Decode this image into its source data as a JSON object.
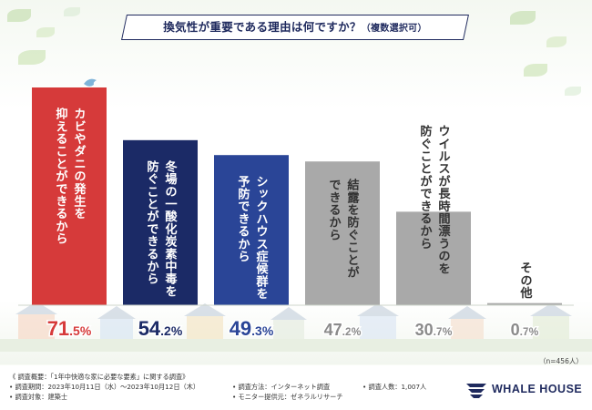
{
  "title": {
    "main": "換気性が重要である理由は何ですか？",
    "sub": "（複数選択可）"
  },
  "chart_data": {
    "type": "bar",
    "title": "換気性が重要である理由は何ですか？（複数選択可）",
    "categories": [
      "カビやダニの発生を抑えることができるから",
      "冬場の一酸化炭素中毒を防ぐことができるから",
      "シックハウス症候群を予防できるから",
      "結露を防ぐことができるから",
      "ウイルスが長時間漂うのを防ぐことができるから",
      "その他"
    ],
    "label_columns": [
      [
        "カビやダニの発生を",
        "抑えることができるから"
      ],
      [
        "冬場の一酸化炭素中毒を",
        "防ぐことができるから"
      ],
      [
        "シックハウス症候群を",
        "予防できるから"
      ],
      [
        "結露を防ぐことが",
        "できるから"
      ],
      [
        "ウイルスが長時間漂うのを",
        "防ぐことができるから"
      ],
      [
        "その他"
      ]
    ],
    "values": [
      71.5,
      54.2,
      49.3,
      47.2,
      30.7,
      0.7
    ],
    "value_labels": [
      {
        "int": "71",
        "dec": ".5",
        "unit": "%"
      },
      {
        "int": "54",
        "dec": ".2",
        "unit": "%"
      },
      {
        "int": "49",
        "dec": ".3",
        "unit": "%"
      },
      {
        "int": "47",
        "dec": ".2",
        "unit": "%"
      },
      {
        "int": "30",
        "dec": ".7",
        "unit": "%"
      },
      {
        "int": "0",
        "dec": ".7",
        "unit": "%"
      }
    ],
    "colors": [
      "#d63a3a",
      "#1b2a66",
      "#2a4597",
      "#a9a9a9",
      "#a9a9a9",
      "#a9a9a9"
    ],
    "value_colors": [
      "#d63a3a",
      "#1b2a66",
      "#2a4597",
      "#8a8a8a",
      "#8a8a8a",
      "#8a8a8a"
    ],
    "ylim": [
      0,
      71.5
    ],
    "xlabel": "",
    "ylabel": "",
    "sample_size": "（n=456人）"
  },
  "footer": {
    "summary": "《 調査概要：「1年中快適な家に必要な要素」に関する調査》",
    "period": "• 調査期間：2023年10月11日（水）～2023年10月12日（木）",
    "target": "• 調査対象：建築士",
    "method": "• 調査方法：インターネット調査",
    "provider": "• モニター提供元：ゼネラルリサーチ",
    "count": "• 調査人数：1,007人"
  },
  "logo": {
    "text": "WHALE HOUSE"
  }
}
